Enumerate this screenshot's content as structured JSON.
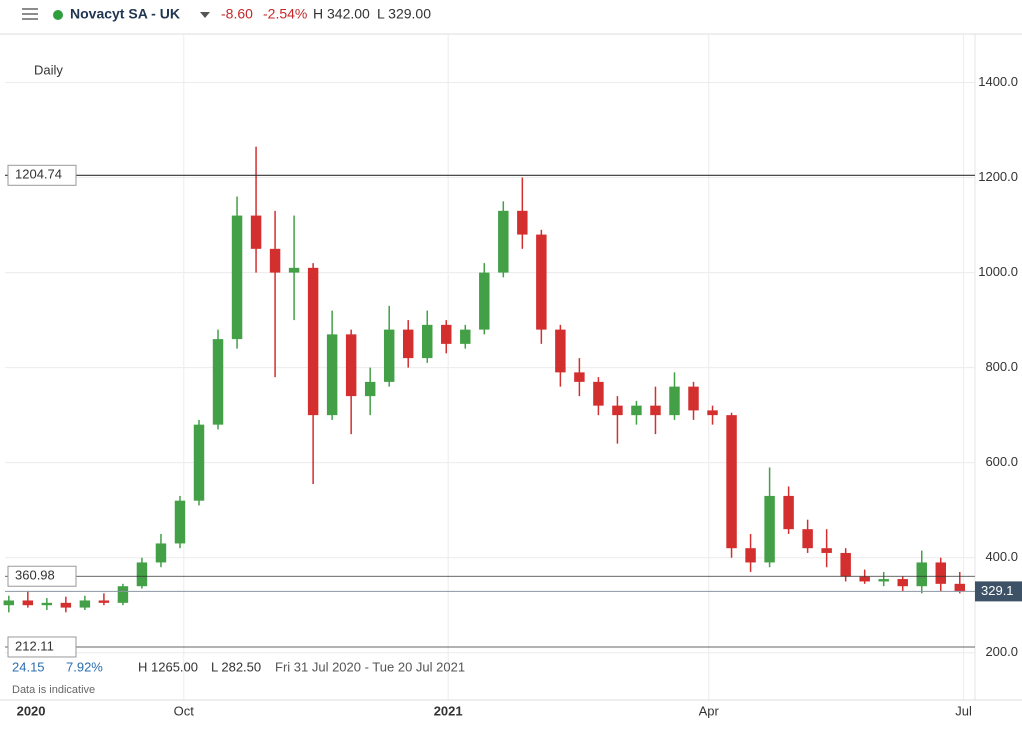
{
  "header": {
    "instrument": "Novacyt SA - UK",
    "change": "-8.60",
    "change_pct": "-2.54%",
    "high": "H 342.00",
    "low": "L 329.00"
  },
  "chart_data": {
    "type": "candlestick",
    "interval": "Daily",
    "categories": [
      null,
      null,
      null,
      null,
      null,
      null,
      null,
      null,
      null,
      null,
      null,
      null,
      null,
      null,
      null,
      null,
      null,
      null,
      null,
      null,
      null,
      null,
      null,
      null,
      null,
      null,
      null,
      null,
      null,
      null,
      null,
      null,
      null,
      null,
      null,
      null,
      null,
      null,
      null,
      null,
      null,
      null,
      null,
      null,
      null,
      null,
      null,
      null,
      null,
      null,
      null
    ],
    "open": [
      300,
      310,
      300,
      305,
      295,
      310,
      305,
      340,
      390,
      430,
      520,
      680,
      860,
      1120,
      1050,
      1000,
      1010,
      700,
      870,
      740,
      770,
      880,
      820,
      890,
      850,
      880,
      1000,
      1130,
      1080,
      880,
      790,
      770,
      720,
      700,
      720,
      700,
      760,
      710,
      700,
      420,
      390,
      530,
      460,
      420,
      410,
      360,
      350,
      355,
      340,
      390,
      345
    ],
    "high": [
      320,
      330,
      315,
      318,
      320,
      325,
      345,
      400,
      450,
      530,
      690,
      880,
      1160,
      1265,
      1130,
      1120,
      1020,
      920,
      880,
      800,
      930,
      900,
      920,
      900,
      890,
      1020,
      1150,
      1200,
      1090,
      890,
      820,
      780,
      740,
      730,
      760,
      790,
      770,
      720,
      705,
      450,
      590,
      550,
      480,
      460,
      420,
      375,
      370,
      360,
      415,
      400,
      370
    ],
    "low": [
      285,
      295,
      290,
      285,
      290,
      300,
      300,
      335,
      380,
      420,
      510,
      670,
      840,
      1000,
      780,
      900,
      555,
      690,
      660,
      700,
      760,
      800,
      810,
      830,
      840,
      870,
      990,
      1050,
      850,
      760,
      740,
      700,
      640,
      680,
      660,
      690,
      690,
      680,
      400,
      370,
      380,
      450,
      410,
      380,
      350,
      345,
      340,
      330,
      325,
      330,
      325
    ],
    "close": [
      310,
      300,
      305,
      295,
      310,
      305,
      340,
      390,
      430,
      520,
      680,
      860,
      1120,
      1050,
      1000,
      1010,
      700,
      870,
      740,
      770,
      880,
      820,
      890,
      850,
      880,
      1000,
      1130,
      1080,
      880,
      790,
      770,
      720,
      700,
      720,
      700,
      760,
      710,
      700,
      420,
      390,
      530,
      460,
      420,
      410,
      360,
      350,
      355,
      340,
      390,
      345,
      329
    ],
    "up_color": "#43a047",
    "down_color": "#d32f2f",
    "xlim": [
      -0.2,
      50.8
    ],
    "xticks": [
      {
        "value": 0.2,
        "label": "2020"
      },
      {
        "value": 9.2,
        "label": "Oct"
      },
      {
        "value": 23.1,
        "label": "2021"
      },
      {
        "value": 36.8,
        "label": "Apr"
      },
      {
        "value": 50.2,
        "label": "Jul"
      }
    ],
    "ylim": [
      90,
      1500
    ],
    "yticks": [
      {
        "value": 200,
        "label": "200.0"
      },
      {
        "value": 400,
        "label": "400.0"
      },
      {
        "value": 600,
        "label": "600.0"
      },
      {
        "value": 800,
        "label": "800.0"
      },
      {
        "value": 1000,
        "label": "1000.0"
      },
      {
        "value": 1200,
        "label": "1200.0"
      },
      {
        "value": 1400,
        "label": "1400.0"
      }
    ],
    "grid": true,
    "levels": [
      1204.74,
      360.98,
      212.11
    ],
    "last_price": 329.1,
    "range_change": "24.15",
    "range_change_pct": "7.92%",
    "range_high": "H 1265.00",
    "range_low": "L 282.50",
    "range_dates": "Fri 31 Jul 2020 - Tue 20 Jul 2021",
    "note": "Data is indicative"
  }
}
